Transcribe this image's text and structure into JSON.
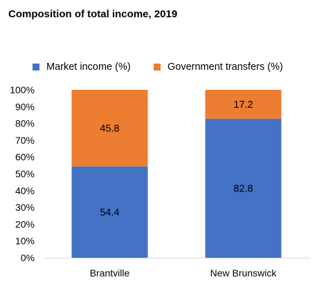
{
  "chart_data": {
    "type": "bar",
    "stacked": true,
    "title": "Composition of total income, 2019",
    "categories": [
      "Brantville",
      "New Brunswick"
    ],
    "series": [
      {
        "name": "Market income (%)",
        "color": "#4472C4",
        "values": [
          54.4,
          82.8
        ]
      },
      {
        "name": "Government transfers (%)",
        "color": "#ED7D31",
        "values": [
          45.8,
          17.2
        ]
      }
    ],
    "ylim": [
      0,
      100
    ],
    "yticks": [
      "0%",
      "10%",
      "20%",
      "30%",
      "40%",
      "50%",
      "60%",
      "70%",
      "80%",
      "90%",
      "100%"
    ],
    "grid": false,
    "legend": "top"
  }
}
